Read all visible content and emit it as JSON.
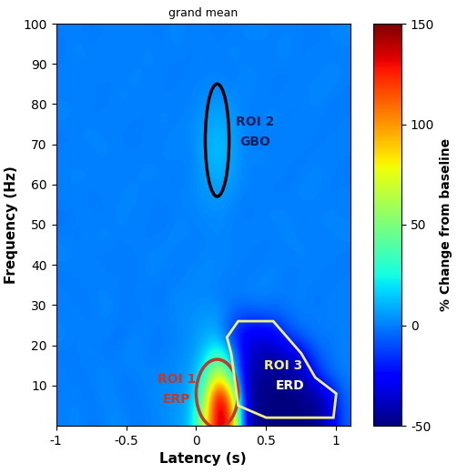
{
  "chart_data": {
    "type": "heatmap",
    "title": "grand mean",
    "x_label": "Latency (s)",
    "y_label": "Frequency (Hz)",
    "xlim": [
      -1,
      1.1
    ],
    "ylim": [
      0,
      100
    ],
    "xticks": [
      -1,
      -0.5,
      0,
      0.5,
      1
    ],
    "yticks": [
      10,
      20,
      30,
      40,
      50,
      60,
      70,
      80,
      90,
      100
    ],
    "x_edges": [
      -1,
      -0.9,
      -0.8,
      -0.7,
      -0.6,
      -0.5,
      -0.4,
      -0.3,
      -0.2,
      -0.1,
      0,
      0.1,
      0.2,
      0.3,
      0.4,
      0.5,
      0.6,
      0.7,
      0.8,
      0.9,
      1.0,
      1.1
    ],
    "y_edges": [
      0,
      5,
      10,
      15,
      20,
      25,
      30,
      35,
      40,
      45,
      50,
      55,
      60,
      65,
      70,
      75,
      80,
      85,
      90,
      95,
      100
    ],
    "cells": [
      [
        0,
        2,
        -2,
        1,
        3,
        -1,
        0,
        2,
        5,
        10,
        60,
        150,
        120,
        -40,
        -48,
        -50,
        -50,
        -50,
        -48,
        -35,
        -5
      ],
      [
        0,
        1,
        -1,
        2,
        0,
        -2,
        1,
        3,
        4,
        8,
        40,
        150,
        90,
        -42,
        -48,
        -50,
        -50,
        -48,
        -45,
        -30,
        -3
      ],
      [
        1,
        -2,
        0,
        3,
        -1,
        0,
        2,
        1,
        3,
        5,
        25,
        80,
        30,
        -40,
        -45,
        -48,
        -45,
        -40,
        -20,
        -5,
        0
      ],
      [
        -1,
        0,
        2,
        -2,
        1,
        3,
        -1,
        0,
        2,
        4,
        15,
        40,
        10,
        -35,
        -40,
        -42,
        -38,
        -30,
        -8,
        -2,
        1
      ],
      [
        2,
        -1,
        1,
        0,
        -3,
        2,
        0,
        -1,
        1,
        3,
        8,
        10,
        -15,
        -30,
        -32,
        -30,
        -12,
        -5,
        0,
        -2,
        1
      ],
      [
        0,
        1,
        -1,
        2,
        0,
        -2,
        1,
        0,
        2,
        3,
        5,
        6,
        -5,
        -10,
        -8,
        -6,
        -3,
        0,
        -1,
        1,
        0
      ],
      [
        1,
        -2,
        0,
        2,
        -1,
        1,
        0,
        -2,
        3,
        1,
        2,
        0,
        -1,
        1,
        2,
        -1,
        0,
        1,
        -2,
        0,
        1
      ],
      [
        -1,
        0,
        2,
        -1,
        1,
        -2,
        2,
        0,
        -1,
        2,
        3,
        1,
        0,
        -1,
        1,
        2,
        -2,
        0,
        1,
        -1,
        0
      ],
      [
        2,
        1,
        -1,
        0,
        -2,
        0,
        1,
        2,
        0,
        -1,
        1,
        2,
        1,
        0,
        -2,
        1,
        0,
        2,
        -1,
        1,
        -1
      ],
      [
        0,
        -1,
        1,
        2,
        0,
        1,
        -1,
        0,
        2,
        1,
        0,
        2,
        0,
        1,
        1,
        -1,
        2,
        0,
        1,
        0,
        2
      ],
      [
        -2,
        1,
        0,
        -1,
        2,
        0,
        1,
        -2,
        1,
        0,
        2,
        3,
        1,
        -1,
        0,
        2,
        1,
        -1,
        0,
        2,
        0
      ],
      [
        1,
        0,
        -1,
        1,
        0,
        2,
        -1,
        1,
        0,
        2,
        4,
        6,
        3,
        0,
        1,
        -1,
        0,
        2,
        1,
        -1,
        1
      ],
      [
        0,
        2,
        1,
        -1,
        1,
        0,
        2,
        0,
        -1,
        1,
        6,
        10,
        6,
        1,
        0,
        1,
        -1,
        0,
        2,
        0,
        -1
      ],
      [
        1,
        -1,
        0,
        2,
        -1,
        1,
        0,
        1,
        2,
        0,
        8,
        14,
        8,
        0,
        2,
        0,
        1,
        -1,
        0,
        1,
        0
      ],
      [
        -1,
        1,
        2,
        0,
        1,
        -2,
        1,
        0,
        1,
        2,
        7,
        12,
        7,
        1,
        -1,
        1,
        0,
        2,
        -1,
        0,
        1
      ],
      [
        2,
        0,
        -1,
        1,
        0,
        1,
        -1,
        2,
        0,
        1,
        5,
        8,
        5,
        0,
        1,
        2,
        -1,
        0,
        1,
        -2,
        0
      ],
      [
        0,
        1,
        1,
        -2,
        2,
        0,
        1,
        -1,
        1,
        0,
        2,
        3,
        2,
        1,
        0,
        -1,
        1,
        0,
        2,
        1,
        -1
      ],
      [
        1,
        -1,
        0,
        1,
        -1,
        2,
        0,
        1,
        -2,
        1,
        0,
        1,
        -1,
        2,
        1,
        0,
        -1,
        1,
        0,
        2,
        1
      ],
      [
        -1,
        2,
        1,
        0,
        1,
        -1,
        2,
        0,
        1,
        -1,
        1,
        0,
        2,
        0,
        -1,
        1,
        2,
        -1,
        1,
        0,
        0
      ],
      [
        0,
        1,
        -2,
        1,
        0,
        1,
        0,
        -1,
        2,
        0,
        1,
        -1,
        0,
        1,
        2,
        0,
        1,
        0,
        -1,
        1,
        2
      ]
    ],
    "colorbar": {
      "range": [
        -50,
        150
      ],
      "ticks": [
        -50,
        0,
        50,
        100,
        150
      ],
      "label": "% Change from baseline"
    },
    "annotations": [
      {
        "text": "ROI 1",
        "color": "#c0392b"
      },
      {
        "text": "ERP",
        "color": "#c0392b"
      },
      {
        "text": "ROI 2",
        "color": "#0a1f5c"
      },
      {
        "text": "GBO",
        "color": "#0a1f5c"
      },
      {
        "text": "ROI 3",
        "color": "#f0f080"
      },
      {
        "text": "ERD",
        "color": "#ffffff"
      }
    ]
  }
}
